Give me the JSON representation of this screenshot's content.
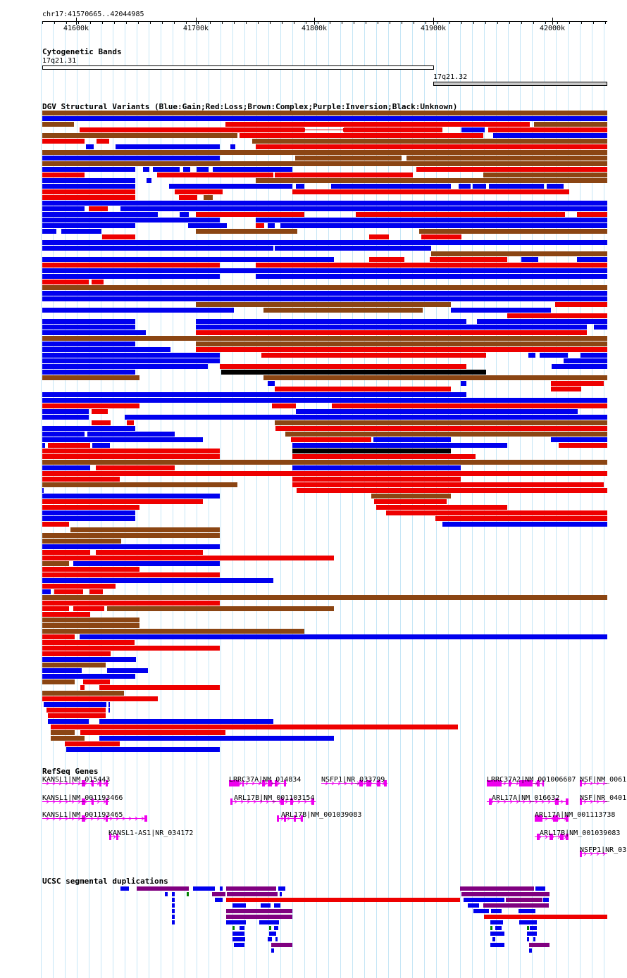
{
  "ruler": {
    "position": "chr17:41570665..42044985",
    "ticks": [
      "41600k",
      "41700k",
      "41800k",
      "41900k",
      "42000k"
    ]
  },
  "cyto": {
    "title": "Cytogenetic Bands",
    "bands": [
      "17q21.31",
      "17q21.32"
    ]
  },
  "dgv": {
    "title": "DGV Structural Variants (Blue:Gain;Red:Loss;Brown:Complex;Purple:Inversion;Black:Unknown)",
    "colors": {
      "gain": "#0000ee",
      "loss": "#ee0000",
      "complex": "#8b4513",
      "inversion": "#800080",
      "unknown": "#000000"
    }
  },
  "refseq": {
    "title": "RefSeq Genes",
    "color": "#ee00ee",
    "genes": [
      "KANSL1|NM_015443",
      "KANSL1|NM_001193466",
      "KANSL1|NM_001193465",
      "KANSL1-AS1|NR_034172",
      "LRRC37A|NM_014834",
      "ARL17B|NM_001103154",
      "ARL17B|NM_001039083",
      "NSFP1|NR_033799",
      "LRRC37A2|NM_001006607",
      "ARL17A|NM_016632",
      "ARL17A|NM_001113738",
      "ARL17B|NM_001039083",
      "NSF|NM_0061",
      "NSF|NR_0401",
      "NSFP1|NR_03"
    ]
  },
  "segdup": {
    "title": "UCSC segmental duplications",
    "colors": [
      "#0000ee",
      "#800080",
      "#ee0000",
      "#008000"
    ]
  }
}
